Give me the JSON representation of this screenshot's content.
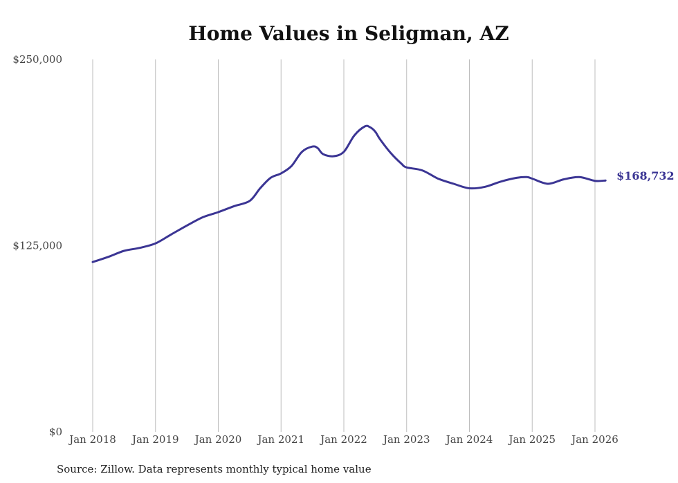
{
  "chart_data": {
    "type": "line",
    "title": "Home Values in Seligman, AZ",
    "source": "Source: Zillow. Data represents monthly typical home value",
    "ylim": [
      0,
      250000
    ],
    "y_ticks": [
      {
        "value": 0,
        "label": "$0"
      },
      {
        "value": 125000,
        "label": "$125,000"
      },
      {
        "value": 250000,
        "label": "$250,000"
      }
    ],
    "x_ticks": [
      {
        "value": 2018.0,
        "label": "Jan 2018"
      },
      {
        "value": 2019.0,
        "label": "Jan 2019"
      },
      {
        "value": 2020.0,
        "label": "Jan 2020"
      },
      {
        "value": 2021.0,
        "label": "Jan 2021"
      },
      {
        "value": 2022.0,
        "label": "Jan 2022"
      },
      {
        "value": 2023.0,
        "label": "Jan 2023"
      },
      {
        "value": 2024.0,
        "label": "Jan 2024"
      },
      {
        "value": 2025.0,
        "label": "Jan 2025"
      },
      {
        "value": 2026.0,
        "label": "Jan 2026"
      }
    ],
    "grid": "vertical",
    "line_color": "#3b3594",
    "end_label": "$168,732",
    "series": [
      {
        "x": [
          2018.0,
          2018.25,
          2018.5,
          2018.75,
          2019.0,
          2019.25,
          2019.5,
          2019.75,
          2020.0,
          2020.25,
          2020.5,
          2020.667,
          2020.833,
          2021.0,
          2021.167,
          2021.333,
          2021.5,
          2021.583,
          2021.667,
          2021.833,
          2022.0,
          2022.167,
          2022.333,
          2022.417,
          2022.5,
          2022.583,
          2022.75,
          2022.917,
          2023.0,
          2023.25,
          2023.5,
          2023.75,
          2024.0,
          2024.25,
          2024.5,
          2024.75,
          2024.917,
          2025.0,
          2025.25,
          2025.5,
          2025.75,
          2026.0,
          2026.167
        ],
        "y": [
          114000,
          117500,
          121500,
          123500,
          126500,
          132500,
          138500,
          144000,
          147500,
          151500,
          155000,
          163500,
          170500,
          173500,
          178500,
          188000,
          191500,
          190500,
          186500,
          185000,
          188000,
          199000,
          205000,
          204500,
          201500,
          196000,
          187000,
          180000,
          177500,
          175500,
          170000,
          166500,
          163500,
          164500,
          168000,
          170500,
          171000,
          170000,
          166500,
          169500,
          171000,
          168500,
          168732
        ]
      }
    ]
  }
}
